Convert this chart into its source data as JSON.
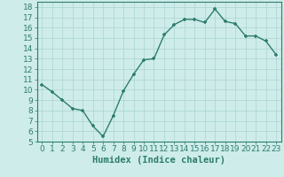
{
  "x": [
    0,
    1,
    2,
    3,
    4,
    5,
    6,
    7,
    8,
    9,
    10,
    11,
    12,
    13,
    14,
    15,
    16,
    17,
    18,
    19,
    20,
    21,
    22,
    23
  ],
  "y": [
    10.5,
    9.8,
    9.0,
    8.2,
    8.0,
    6.5,
    5.5,
    7.5,
    9.9,
    11.5,
    12.9,
    13.0,
    15.3,
    16.3,
    16.8,
    16.8,
    16.5,
    17.8,
    16.6,
    16.4,
    15.2,
    15.2,
    14.7,
    13.4
  ],
  "xlabel": "Humidex (Indice chaleur)",
  "ylim": [
    5,
    18.5
  ],
  "xlim": [
    -0.5,
    23.5
  ],
  "yticks": [
    5,
    6,
    7,
    8,
    9,
    10,
    11,
    12,
    13,
    14,
    15,
    16,
    17,
    18
  ],
  "xticks": [
    0,
    1,
    2,
    3,
    4,
    5,
    6,
    7,
    8,
    9,
    10,
    11,
    12,
    13,
    14,
    15,
    16,
    17,
    18,
    19,
    20,
    21,
    22,
    23
  ],
  "line_color": "#2e7d6e",
  "marker": "+",
  "background_color": "#ceecea",
  "grid_color": "#b0d8d4",
  "tick_fontsize": 6.5,
  "xlabel_fontsize": 7.5
}
